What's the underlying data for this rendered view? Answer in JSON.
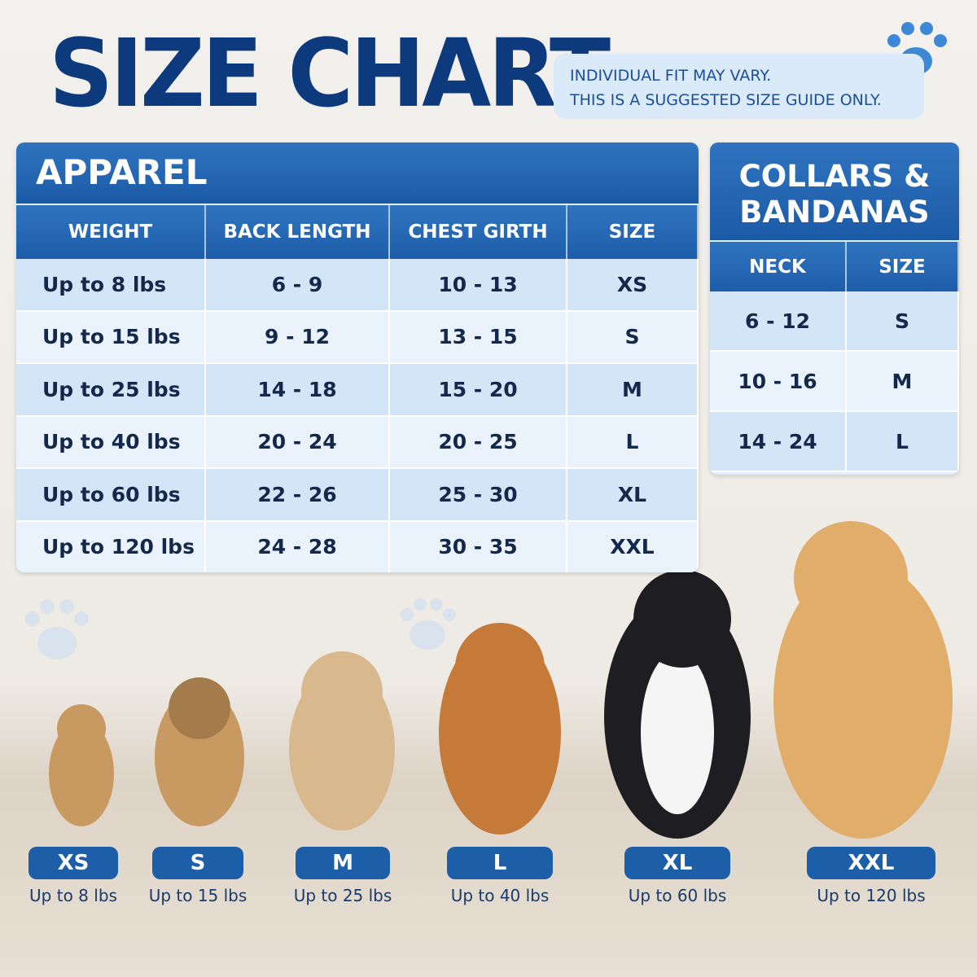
{
  "header": {
    "title": "SIZE CHART",
    "note": [
      "INDIVIDUAL FIT MAY VARY.",
      "THIS IS A SUGGESTED SIZE GUIDE ONLY."
    ]
  },
  "apparel": {
    "title": "APPAREL",
    "columns": [
      "WEIGHT",
      "BACK LENGTH",
      "CHEST GIRTH",
      "SIZE"
    ],
    "rows": [
      [
        "Up to 8 lbs",
        "6 - 9",
        "10 - 13",
        "XS"
      ],
      [
        "Up to 15 lbs",
        "9 - 12",
        "13 - 15",
        "S"
      ],
      [
        "Up to 25 lbs",
        "14 - 18",
        "15 - 20",
        "M"
      ],
      [
        "Up to 40 lbs",
        "20 - 24",
        "20 - 25",
        "L"
      ],
      [
        "Up to 60 lbs",
        "22 - 26",
        "25 - 30",
        "XL"
      ],
      [
        "Up to 120 lbs",
        "24 - 28",
        "30 - 35",
        "XXL"
      ]
    ]
  },
  "collars": {
    "title": [
      "COLLARS &",
      "BANDANAS"
    ],
    "columns": [
      "NECK",
      "SIZE"
    ],
    "rows": [
      [
        "6 - 12",
        "S"
      ],
      [
        "10 - 16",
        "M"
      ],
      [
        "14 - 24",
        "L"
      ]
    ]
  },
  "dogs": [
    {
      "size": "XS",
      "weight": "Up to 8 lbs"
    },
    {
      "size": "S",
      "weight": "Up to 15 lbs"
    },
    {
      "size": "M",
      "weight": "Up to 25 lbs"
    },
    {
      "size": "L",
      "weight": "Up to 40 lbs"
    },
    {
      "size": "XL",
      "weight": "Up to 60 lbs"
    },
    {
      "size": "XXL",
      "weight": "Up to 120 lbs"
    }
  ]
}
